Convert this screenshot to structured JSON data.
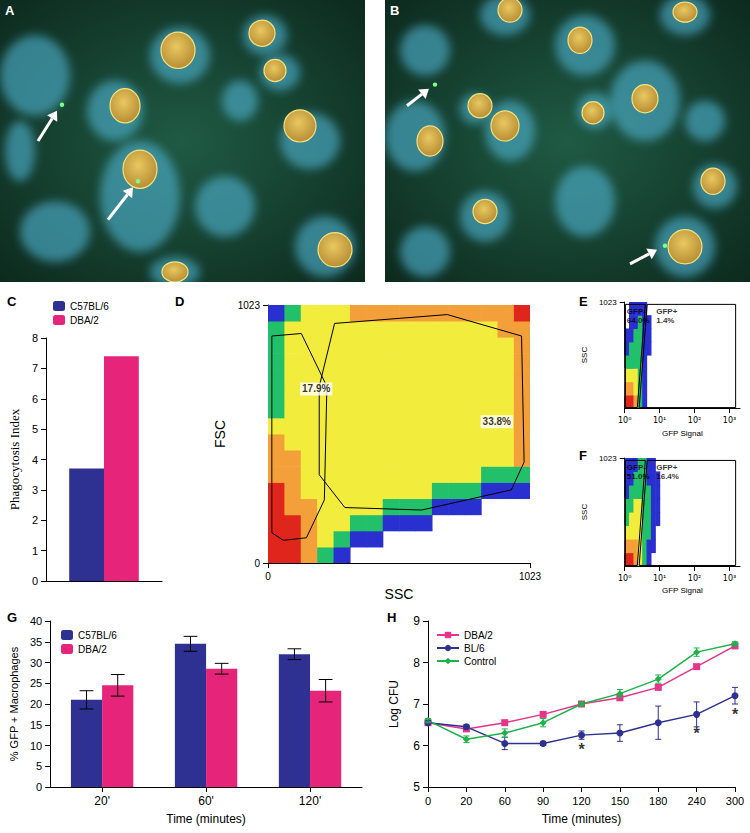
{
  "chart_data": [
    {
      "type": "image",
      "title": "A"
    },
    {
      "type": "image",
      "title": "B"
    },
    {
      "type": "bar",
      "title": "C",
      "y_label": "Phagocytosis Index",
      "categories": [
        null
      ],
      "series": [
        {
          "name": "C57BL/6",
          "color": "#2e3192",
          "values": [
            3.7
          ]
        },
        {
          "name": "DBA/2",
          "color": "#e6257a",
          "values": [
            7.4
          ]
        }
      ],
      "ylim": [
        0,
        8
      ],
      "yticks": [
        0,
        1,
        2,
        3,
        4,
        5,
        6,
        7,
        8
      ],
      "legend": "top-left",
      "grid": false,
      "tick_labels": "y"
    },
    {
      "type": "density",
      "title": "D",
      "x_label": "SSC",
      "y_label": "FSC",
      "xlim": [
        0,
        1023
      ],
      "ylim": [
        0,
        1023
      ],
      "xticks": [
        0,
        1023
      ],
      "yticks": [
        0,
        1023
      ],
      "x_edges": [
        0,
        64,
        128,
        192,
        256,
        320,
        384,
        448,
        512,
        576,
        640,
        704,
        768,
        832,
        896,
        960,
        1023
      ],
      "y_edges": [
        0,
        64,
        128,
        192,
        256,
        320,
        384,
        448,
        512,
        576,
        640,
        704,
        768,
        832,
        896,
        960,
        1023
      ],
      "density": [
        [
          5,
          5,
          4,
          2,
          1,
          0,
          0,
          0,
          0,
          0,
          0,
          0,
          0,
          0,
          0,
          0
        ],
        [
          5,
          5,
          4,
          3,
          2,
          1,
          1,
          0,
          0,
          0,
          0,
          0,
          0,
          0,
          0,
          0
        ],
        [
          5,
          5,
          4,
          3,
          3,
          2,
          2,
          1,
          1,
          1,
          0,
          0,
          0,
          0,
          0,
          0
        ],
        [
          5,
          4,
          4,
          3,
          3,
          3,
          3,
          2,
          2,
          2,
          1,
          1,
          1,
          0,
          0,
          0
        ],
        [
          5,
          4,
          3,
          3,
          3,
          3,
          3,
          3,
          3,
          3,
          2,
          2,
          2,
          1,
          1,
          1
        ],
        [
          4,
          4,
          3,
          3,
          3,
          3,
          3,
          3,
          3,
          3,
          3,
          3,
          3,
          2,
          2,
          2
        ],
        [
          4,
          4,
          3,
          3,
          3,
          3,
          3,
          3,
          3,
          3,
          3,
          3,
          3,
          3,
          3,
          4
        ],
        [
          4,
          3,
          3,
          3,
          3,
          3,
          3,
          3,
          3,
          3,
          3,
          3,
          3,
          3,
          3,
          4
        ],
        [
          3,
          3,
          3,
          3,
          3,
          3,
          3,
          3,
          3,
          3,
          3,
          3,
          3,
          3,
          3,
          4
        ],
        [
          2,
          3,
          3,
          3,
          3,
          3,
          3,
          3,
          3,
          3,
          3,
          3,
          3,
          3,
          3,
          4
        ],
        [
          2,
          3,
          3,
          3,
          3,
          3,
          3,
          3,
          3,
          3,
          3,
          3,
          3,
          3,
          3,
          4
        ],
        [
          2,
          3,
          3,
          3,
          3,
          3,
          3,
          3,
          3,
          3,
          3,
          3,
          3,
          3,
          3,
          4
        ],
        [
          2,
          3,
          3,
          3,
          3,
          3,
          3,
          3,
          3,
          3,
          3,
          3,
          3,
          3,
          3,
          4
        ],
        [
          2,
          3,
          3,
          3,
          3,
          3,
          3,
          3,
          3,
          3,
          3,
          3,
          3,
          3,
          3,
          4
        ],
        [
          2,
          3,
          3,
          3,
          3,
          3,
          3,
          3,
          3,
          3,
          3,
          3,
          3,
          3,
          4,
          4
        ],
        [
          1,
          2,
          3,
          3,
          3,
          4,
          4,
          4,
          4,
          4,
          4,
          4,
          4,
          4,
          4,
          5
        ]
      ],
      "gates": [
        {
          "label": "17.9%",
          "at": [
            125,
            690
          ],
          "points": [
            [
              15,
              120
            ],
            [
              15,
              900
            ],
            [
              130,
              910
            ],
            [
              230,
              700
            ],
            [
              220,
              250
            ],
            [
              150,
              100
            ],
            [
              60,
              90
            ]
          ]
        },
        {
          "label": "33.8%",
          "at": [
            830,
            560
          ],
          "points": [
            [
              200,
              700
            ],
            [
              260,
              950
            ],
            [
              700,
              985
            ],
            [
              990,
              900
            ],
            [
              1000,
              400
            ],
            [
              950,
              290
            ],
            [
              600,
              210
            ],
            [
              300,
              220
            ],
            [
              200,
              350
            ]
          ]
        }
      ],
      "grid": false
    },
    {
      "type": "density",
      "title": "E",
      "x_label": "GFP Signal",
      "y_label": "SSC",
      "log": "x",
      "xlim": [
        1,
        2000
      ],
      "ylim": [
        0,
        1023
      ],
      "xticks": [
        {
          "value": 1,
          "label": "10⁰"
        },
        {
          "value": 10,
          "label": "10¹"
        },
        {
          "value": 100,
          "label": "10²"
        },
        {
          "value": 1000,
          "label": "10³"
        }
      ],
      "yticks": [
        1023
      ],
      "x_edges": [
        1,
        1.33,
        1.78,
        2.37,
        3.16,
        4.22,
        5.62,
        7.5,
        10
      ],
      "y_edges": [
        0,
        128,
        256,
        384,
        512,
        640,
        768,
        896,
        1023
      ],
      "density": [
        [
          5,
          5,
          4,
          2,
          1,
          0,
          0,
          0
        ],
        [
          4,
          4,
          3,
          2,
          1,
          0,
          0,
          0
        ],
        [
          3,
          3,
          3,
          2,
          1,
          0,
          0,
          0
        ],
        [
          2,
          2,
          2,
          2,
          1,
          0,
          0,
          0
        ],
        [
          1,
          2,
          2,
          2,
          1,
          1,
          0,
          0
        ],
        [
          1,
          1,
          2,
          2,
          1,
          1,
          0,
          0
        ],
        [
          0,
          1,
          1,
          2,
          1,
          1,
          0,
          0
        ],
        [
          0,
          1,
          1,
          1,
          1,
          0,
          0,
          0
        ]
      ],
      "gates": [
        {
          "name": "GFP-",
          "label": "64.0%",
          "at": [
            1.15,
            890
          ],
          "points": [
            [
              1.05,
              5
            ],
            [
              2.3,
              5
            ],
            [
              3.9,
              1000
            ],
            [
              1.05,
              1000
            ]
          ]
        },
        {
          "name": "GFP+",
          "label": "1.4%",
          "at": [
            8,
            890
          ],
          "points": [
            [
              2.6,
              5
            ],
            [
              1500,
              5
            ],
            [
              1500,
              1000
            ],
            [
              4.4,
              1000
            ]
          ]
        }
      ],
      "grid": false
    },
    {
      "type": "density",
      "title": "F",
      "x_label": "GFP Signal",
      "y_label": "SSC",
      "log": "x",
      "xlim": [
        1,
        2000
      ],
      "ylim": [
        0,
        1023
      ],
      "xticks": [
        {
          "value": 1,
          "label": "10⁰"
        },
        {
          "value": 10,
          "label": "10¹"
        },
        {
          "value": 100,
          "label": "10²"
        },
        {
          "value": 1000,
          "label": "10³"
        }
      ],
      "yticks": [
        1023
      ],
      "x_edges": [
        1,
        1.33,
        1.78,
        2.37,
        3.16,
        4.22,
        5.62,
        7.5,
        10,
        13.3
      ],
      "y_edges": [
        0,
        128,
        256,
        384,
        512,
        640,
        768,
        896,
        1023
      ],
      "density": [
        [
          5,
          5,
          4,
          3,
          2,
          1,
          0,
          0,
          0
        ],
        [
          4,
          4,
          4,
          3,
          2,
          1,
          1,
          0,
          0
        ],
        [
          3,
          3,
          3,
          3,
          2,
          2,
          1,
          0,
          0
        ],
        [
          2,
          3,
          3,
          3,
          2,
          2,
          1,
          1,
          0
        ],
        [
          2,
          2,
          3,
          3,
          2,
          2,
          1,
          1,
          0
        ],
        [
          1,
          2,
          2,
          2,
          2,
          2,
          1,
          1,
          0
        ],
        [
          1,
          1,
          2,
          2,
          2,
          1,
          1,
          1,
          0
        ],
        [
          1,
          1,
          1,
          2,
          2,
          1,
          1,
          0,
          0
        ]
      ],
      "gates": [
        {
          "name": "GFP-",
          "label": "51.0%",
          "at": [
            1.15,
            890
          ],
          "points": [
            [
              1.05,
              5
            ],
            [
              2.3,
              5
            ],
            [
              3.9,
              1000
            ],
            [
              1.05,
              1000
            ]
          ]
        },
        {
          "name": "GFP+",
          "label": "16.4%",
          "at": [
            8,
            890
          ],
          "points": [
            [
              2.6,
              5
            ],
            [
              1500,
              5
            ],
            [
              1500,
              1000
            ],
            [
              4.4,
              1000
            ]
          ]
        }
      ],
      "grid": false
    },
    {
      "type": "bar",
      "title": "G",
      "y_label": "% GFP + Macrophages",
      "x_label": "Time (minutes)",
      "categories": [
        "20'",
        "60'",
        "120'"
      ],
      "series": [
        {
          "name": "C57BL/6",
          "color": "#2e3192",
          "values": [
            21.0,
            34.5,
            32.0
          ],
          "errors": [
            2.2,
            1.8,
            1.3
          ]
        },
        {
          "name": "DBA/2",
          "color": "#e6257a",
          "values": [
            24.5,
            28.5,
            23.2
          ],
          "errors": [
            2.6,
            1.3,
            2.7
          ]
        }
      ],
      "ylim": [
        0,
        40
      ],
      "yticks": [
        0,
        5,
        10,
        15,
        20,
        25,
        30,
        35,
        40
      ],
      "legend": "top-left",
      "grid": false
    },
    {
      "type": "line",
      "title": "H",
      "y_label": "Log CFU",
      "x_label": "Time (minutes)",
      "categories": [
        "0",
        "20",
        "60",
        "90",
        "120",
        "150",
        "180",
        "240",
        "300"
      ],
      "series": [
        {
          "name": "DBA/2",
          "color": "#e8338a",
          "marker": "square",
          "values": [
            6.55,
            6.4,
            6.55,
            6.75,
            7.0,
            7.15,
            7.4,
            7.9,
            8.4
          ]
        },
        {
          "name": "BL/6",
          "color": "#2e3192",
          "marker": "circle",
          "values": [
            6.55,
            6.45,
            6.05,
            6.05,
            6.25,
            6.3,
            6.55,
            6.75,
            7.2
          ],
          "errors": [
            0.05,
            0.05,
            0.15,
            0.05,
            0.1,
            0.2,
            0.4,
            0.3,
            0.2
          ]
        },
        {
          "name": "Control",
          "color": "#1db34a",
          "marker": "diamond",
          "values": [
            6.6,
            6.15,
            6.3,
            6.55,
            7.0,
            7.25,
            7.6,
            8.25,
            8.45
          ],
          "errors": [
            0.05,
            0.08,
            0.1,
            0.1,
            0.05,
            0.1,
            0.1,
            0.1,
            0.05
          ]
        }
      ],
      "annotations": [
        {
          "text": "*",
          "x": "120",
          "y": 5.9
        },
        {
          "text": "*",
          "x": "240",
          "y": 6.3
        },
        {
          "text": "*",
          "x": "300",
          "y": 6.75
        }
      ],
      "ylim": [
        5,
        9
      ],
      "yticks": [
        5,
        6,
        7,
        8,
        9
      ],
      "legend": "top-left",
      "grid": false
    }
  ]
}
